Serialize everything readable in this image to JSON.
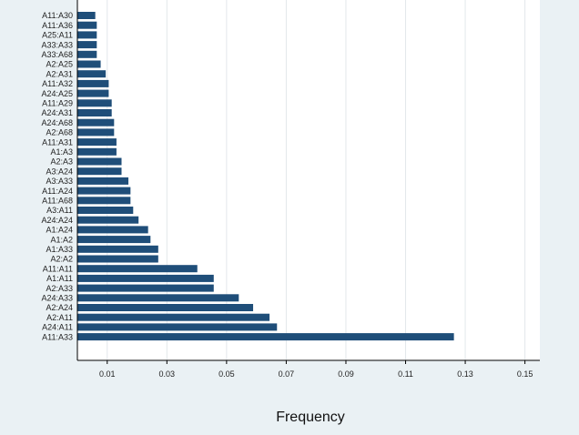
{
  "chart_data": {
    "type": "bar",
    "orientation": "horizontal",
    "xlabel": "Frequency",
    "xlim": [
      0,
      0.155
    ],
    "xticks": [
      0.01,
      0.03,
      0.05,
      0.07,
      0.09,
      0.11,
      0.13,
      0.15
    ],
    "xtick_labels": [
      "0.01",
      "0.03",
      "0.05",
      "0.07",
      "0.09",
      "0.11",
      "0.13",
      "0.15"
    ],
    "grid": true,
    "colors": {
      "bar": "#1f4e79",
      "background": "#eaf1f4",
      "plot_background": "#ffffff",
      "grid": "#e3e8eb"
    },
    "categories": [
      "A11:A30",
      "A11:A36",
      "A25:A11",
      "A33:A33",
      "A33:A68",
      "A2:A25",
      "A2:A31",
      "A11:A32",
      "A24:A25",
      "A11:A29",
      "A24:A31",
      "A24:A68",
      "A2:A68",
      "A11:A31",
      "A1:A3",
      "A2:A3",
      "A3:A24",
      "A3:A33",
      "A11:A24",
      "A11:A68",
      "A3:A11",
      "A24:A24",
      "A1:A24",
      "A1:A2",
      "A1:A33",
      "A2:A2",
      "A11:A11",
      "A1:A11",
      "A2:A33",
      "A24:A33",
      "A2:A24",
      "A2:A11",
      "A24:A11",
      "A11:A33"
    ],
    "values": [
      0.006,
      0.0065,
      0.0065,
      0.0065,
      0.0065,
      0.0078,
      0.0095,
      0.0105,
      0.0105,
      0.0115,
      0.0115,
      0.0123,
      0.0123,
      0.0131,
      0.0131,
      0.0148,
      0.0148,
      0.0171,
      0.0178,
      0.0178,
      0.0187,
      0.0205,
      0.0237,
      0.0245,
      0.0271,
      0.0271,
      0.0402,
      0.0457,
      0.0457,
      0.0541,
      0.0589,
      0.0644,
      0.0669,
      0.1262
    ]
  }
}
